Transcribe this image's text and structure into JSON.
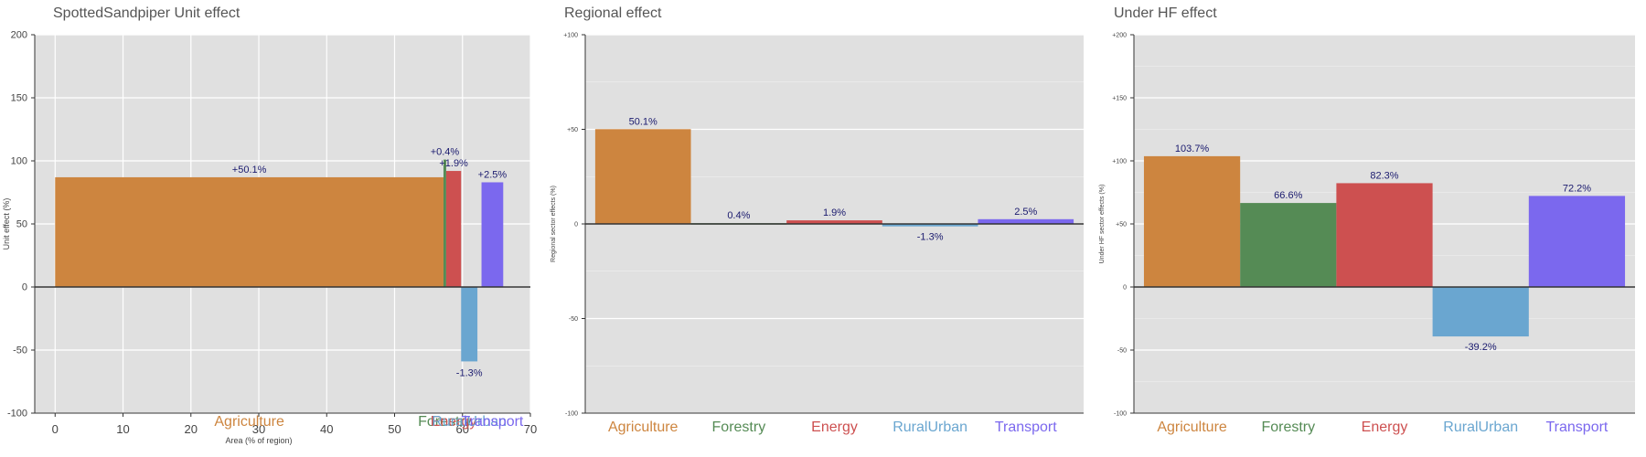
{
  "colors": {
    "panel_bg": "#e0e0e0",
    "grid": "#ffffff",
    "zero_line": "#333333",
    "label_text": "#1a1a6e"
  },
  "sectors": [
    {
      "name": "Agriculture",
      "color": "#cd853f"
    },
    {
      "name": "Forestry",
      "color": "#558b55"
    },
    {
      "name": "Energy",
      "color": "#cd5050"
    },
    {
      "name": "RuralUrban",
      "color": "#6aa6d0"
    },
    {
      "name": "Transport",
      "color": "#7b68ee"
    }
  ],
  "chart_data": [
    {
      "type": "bar",
      "title": "SpottedSandpiper Unit effect",
      "xlabel": "Area (% of region)",
      "ylabel": "Unit effect (%)",
      "xlim": [
        -3,
        70
      ],
      "ylim": [
        -100,
        200
      ],
      "xticks": [
        "0",
        "10",
        "20",
        "30",
        "40",
        "50",
        "60",
        "70"
      ],
      "yticks": [
        "-100",
        "-50",
        "0",
        "50",
        "100",
        "150",
        "200"
      ],
      "grid": true,
      "bars": [
        {
          "sector": "Agriculture",
          "x_start": 0,
          "x_end": 57.2,
          "value": 87,
          "label": "+50.1%"
        },
        {
          "sector": "Forestry",
          "x_start": 57.2,
          "x_end": 57.6,
          "value": 101,
          "label": "+0.4%"
        },
        {
          "sector": "Energy",
          "x_start": 57.6,
          "x_end": 59.8,
          "value": 92,
          "label": "+1.9%"
        },
        {
          "sector": "RuralUrban",
          "x_start": 59.8,
          "x_end": 62.2,
          "value": -59,
          "label": "-1.3%"
        },
        {
          "sector": "Transport",
          "x_start": 62.8,
          "x_end": 66.0,
          "value": 83,
          "label": "+2.5%"
        }
      ]
    },
    {
      "type": "bar",
      "title": "Regional effect",
      "xlabel": "",
      "ylabel": "Regional sector effects (%)",
      "ylim": [
        -100,
        100
      ],
      "yticks": [
        "-100",
        "-50",
        "0",
        "+50",
        "+100"
      ],
      "grid": true,
      "categories": [
        "Agriculture",
        "Forestry",
        "Energy",
        "RuralUrban",
        "Transport"
      ],
      "values": [
        50.1,
        0.4,
        1.9,
        -1.3,
        2.5
      ],
      "labels": [
        "50.1%",
        "0.4%",
        "1.9%",
        "-1.3%",
        "2.5%"
      ]
    },
    {
      "type": "bar",
      "title": "Under HF effect",
      "xlabel": "",
      "ylabel": "Under HF sector effects (%)",
      "ylim": [
        -100,
        200
      ],
      "yticks": [
        "-100",
        "-50",
        "0",
        "+50",
        "+100",
        "+150",
        "+200"
      ],
      "grid": true,
      "categories": [
        "Agriculture",
        "Forestry",
        "Energy",
        "RuralUrban",
        "Transport"
      ],
      "values": [
        103.7,
        66.6,
        82.3,
        -39.2,
        72.2
      ],
      "labels": [
        "103.7%",
        "66.6%",
        "82.3%",
        "-39.2%",
        "72.2%"
      ]
    }
  ]
}
